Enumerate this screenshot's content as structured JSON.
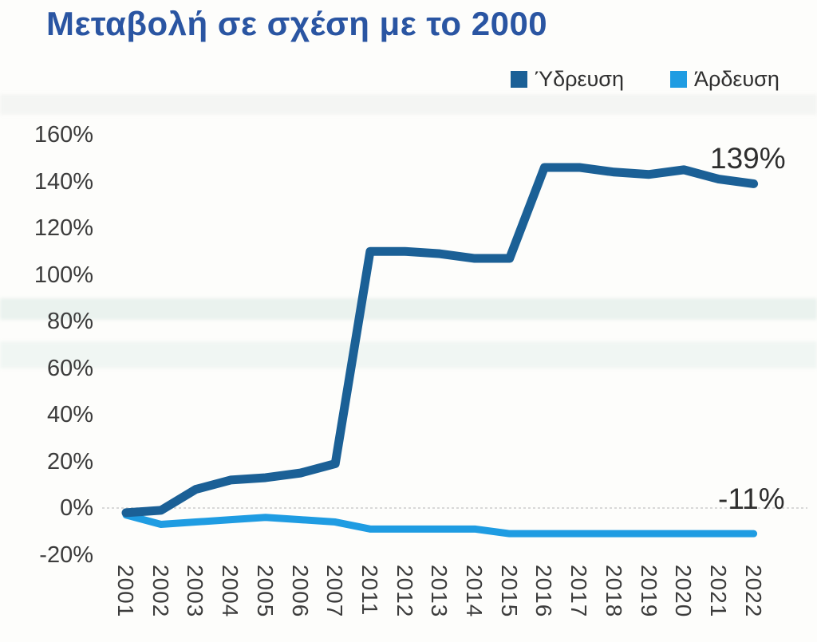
{
  "title": "Μεταβολή σε σχέση με το 2000",
  "legend": {
    "series1_label": "Ύδρευση",
    "series2_label": "Άρδευση"
  },
  "annotations": {
    "hydreusi_end": "139%",
    "ardeusi_end": "-11%"
  },
  "colors": {
    "title_text": "#2a55a2",
    "hydreusi_line": "#1b6096",
    "ardeusi_line": "#1f9ce2",
    "axis_text": "#3c3c3c",
    "zero_gridline": "#cccccc",
    "annotation_text": "#2e2e2e"
  },
  "y_axis": {
    "labels": [
      "160%",
      "140%",
      "120%",
      "100%",
      "80%",
      "60%",
      "40%",
      "20%",
      "0%",
      "-20%"
    ]
  },
  "x_axis": {
    "labels": [
      "2001",
      "2002",
      "2003",
      "2004",
      "2005",
      "2006",
      "2007",
      "2011",
      "2012",
      "2013",
      "2014",
      "2015",
      "2016",
      "2017",
      "2018",
      "2019",
      "2020",
      "2021",
      "2022"
    ]
  },
  "chart_data": {
    "type": "line",
    "title": "Μεταβολή σε σχέση με το 2000",
    "categories": [
      "2001",
      "2002",
      "2003",
      "2004",
      "2005",
      "2006",
      "2007",
      "2011",
      "2012",
      "2013",
      "2014",
      "2015",
      "2016",
      "2017",
      "2018",
      "2019",
      "2020",
      "2021",
      "2022"
    ],
    "series": [
      {
        "name": "Ύδρευση",
        "color": "#1b6096",
        "values": [
          -2,
          -1,
          8,
          12,
          13,
          15,
          19,
          110,
          110,
          109,
          107,
          107,
          146,
          146,
          144,
          143,
          145,
          141,
          139
        ],
        "end_label": "139%"
      },
      {
        "name": "Άρδευση",
        "color": "#1f9ce2",
        "values": [
          -3,
          -7,
          -6,
          -5,
          -4,
          -5,
          -6,
          -9,
          -9,
          -9,
          -9,
          -11,
          -11,
          -11,
          -11,
          -11,
          -11,
          -11,
          -11
        ],
        "end_label": "-11%"
      }
    ],
    "xlabel": "",
    "ylabel": "",
    "ylim": [
      -20,
      160
    ],
    "y_tick_step": 20,
    "y_tick_format": "percent",
    "grid": "zero-line-only-dotted",
    "legend_position": "top-right"
  }
}
